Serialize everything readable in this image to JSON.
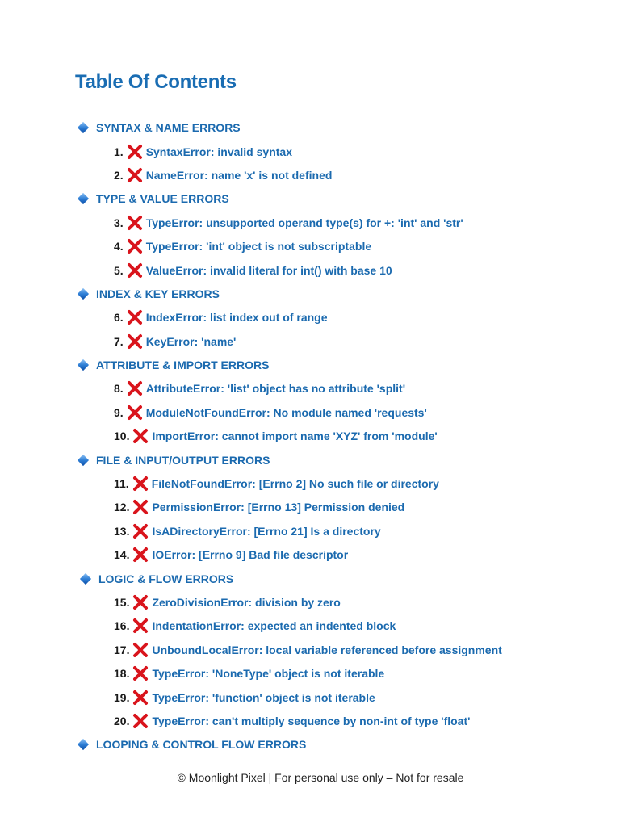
{
  "title": "Table Of Contents",
  "colors": {
    "heading": "#1a6db3",
    "item_text": "#1b6aaf",
    "number": "#1a1a1a",
    "x_mark": "#d9141c",
    "diamond": "#2f7fd6"
  },
  "icons": {
    "section": "blue-diamond-icon",
    "item": "red-x-icon"
  },
  "entries": [
    {
      "type": "section",
      "label": "SYNTAX & NAME ERRORS"
    },
    {
      "type": "item",
      "number": "1.",
      "label": "SyntaxError: invalid syntax"
    },
    {
      "type": "item",
      "number": "2.",
      "label": "NameError: name 'x' is not defined"
    },
    {
      "type": "section",
      "label": "TYPE & VALUE ERRORS"
    },
    {
      "type": "item",
      "number": "3.",
      "label": "TypeError: unsupported operand type(s) for +: 'int' and 'str'"
    },
    {
      "type": "item",
      "number": "4.",
      "label": "TypeError: 'int' object is not subscriptable"
    },
    {
      "type": "item",
      "number": "5.",
      "label": "ValueError: invalid literal for int() with base 10"
    },
    {
      "type": "section",
      "label": "INDEX & KEY ERRORS"
    },
    {
      "type": "item",
      "number": "6.",
      "label": "IndexError: list index out of range"
    },
    {
      "type": "item",
      "number": "7.",
      "label": "KeyError: 'name'"
    },
    {
      "type": "section",
      "label": "ATTRIBUTE & IMPORT ERRORS"
    },
    {
      "type": "item",
      "number": "8.",
      "label": "AttributeError: 'list' object has no attribute 'split'"
    },
    {
      "type": "item",
      "number": "9.",
      "label": "ModuleNotFoundError: No module named 'requests'"
    },
    {
      "type": "item",
      "number": "10.",
      "label": "ImportError: cannot import name 'XYZ' from 'module'"
    },
    {
      "type": "section",
      "label": "FILE & INPUT/OUTPUT ERRORS"
    },
    {
      "type": "item",
      "number": "11.",
      "label": "FileNotFoundError: [Errno 2] No such file or directory"
    },
    {
      "type": "item",
      "number": "12.",
      "label": "PermissionError: [Errno 13] Permission denied"
    },
    {
      "type": "item",
      "number": "13.",
      "label": "IsADirectoryError: [Errno 21] Is a directory"
    },
    {
      "type": "item",
      "number": "14.",
      "label": "IOError: [Errno 9] Bad file descriptor"
    },
    {
      "type": "section",
      "label": "LOGIC & FLOW ERRORS",
      "indent": true
    },
    {
      "type": "item",
      "number": "15.",
      "label": "ZeroDivisionError: division by zero"
    },
    {
      "type": "item",
      "number": "16.",
      "label": "IndentationError: expected an indented block"
    },
    {
      "type": "item",
      "number": "17.",
      "label": "UnboundLocalError: local variable referenced before assignment"
    },
    {
      "type": "item",
      "number": "18.",
      "label": "TypeError: 'NoneType' object is not iterable"
    },
    {
      "type": "item",
      "number": "19.",
      "label": "TypeError: 'function' object is not iterable"
    },
    {
      "type": "item",
      "number": "20.",
      "label": "TypeError: can't multiply sequence by non-int of type 'float'"
    },
    {
      "type": "section",
      "label": "LOOPING & CONTROL FLOW ERRORS"
    }
  ],
  "footer": "© Moonlight Pixel | For personal use only – Not for resale"
}
